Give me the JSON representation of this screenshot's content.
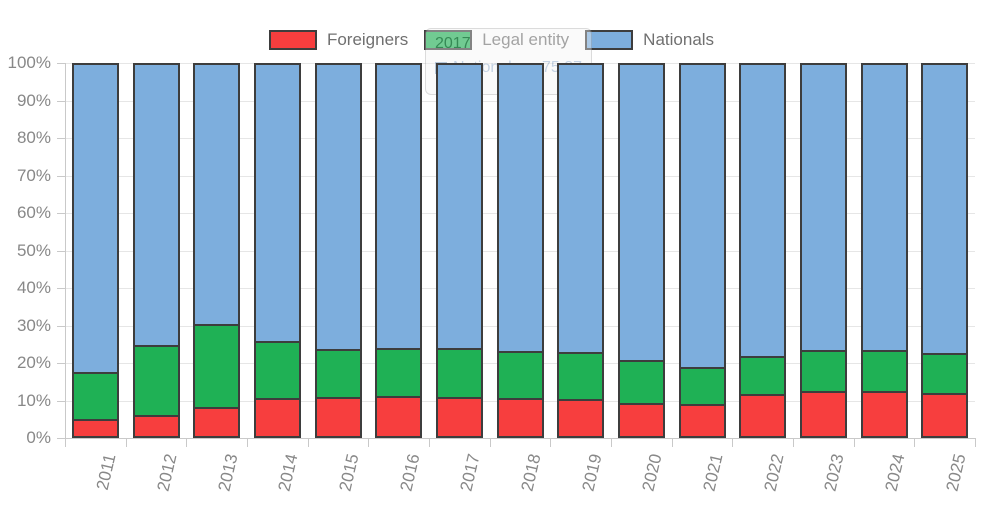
{
  "chart_data": {
    "type": "bar",
    "stacking": "percent100",
    "title": "",
    "xlabel": "",
    "ylabel": "",
    "categories": [
      "2011",
      "2012",
      "2013",
      "2014",
      "2015",
      "2016",
      "2017",
      "2018",
      "2019",
      "2020",
      "2021",
      "2022",
      "2023",
      "2024",
      "2025"
    ],
    "series": [
      {
        "name": "Foreigners",
        "color": "#f73e3e",
        "values": [
          5.0,
          6.1,
          8.2,
          10.6,
          11.0,
          11.2,
          10.93,
          10.6,
          10.5,
          9.4,
          9.2,
          11.7,
          12.6,
          12.6,
          12.1
        ]
      },
      {
        "name": "Legal entity",
        "color": "#1fb155",
        "values": [
          12.7,
          18.7,
          22.1,
          15.3,
          12.7,
          12.7,
          13.2,
          12.6,
          12.4,
          11.5,
          9.8,
          10.3,
          10.9,
          10.8,
          10.6
        ]
      },
      {
        "name": "Nationals",
        "color": "#7daedd",
        "values": [
          82.3,
          75.2,
          69.7,
          74.1,
          76.3,
          76.1,
          75.87,
          76.8,
          77.1,
          79.1,
          81.0,
          78.0,
          76.5,
          76.6,
          77.3
        ]
      }
    ],
    "ylim": [
      0,
      100
    ],
    "y_ticks": [
      "0%",
      "10%",
      "20%",
      "30%",
      "40%",
      "50%",
      "60%",
      "70%",
      "80%",
      "90%",
      "100%"
    ],
    "grid": true,
    "legend_position": "top",
    "bar_border_color": "#3d3d3d",
    "grid_color": "#e6e6e6",
    "axis_color": "#c9c9c9",
    "label_color": "#888888",
    "legend_text_color": "#707070"
  },
  "tooltip": {
    "title": "2017",
    "series": "Nationals",
    "label": "Nationals:",
    "value": "75.87",
    "text_color": "#7596bd",
    "icon_color": "#7daedd"
  }
}
